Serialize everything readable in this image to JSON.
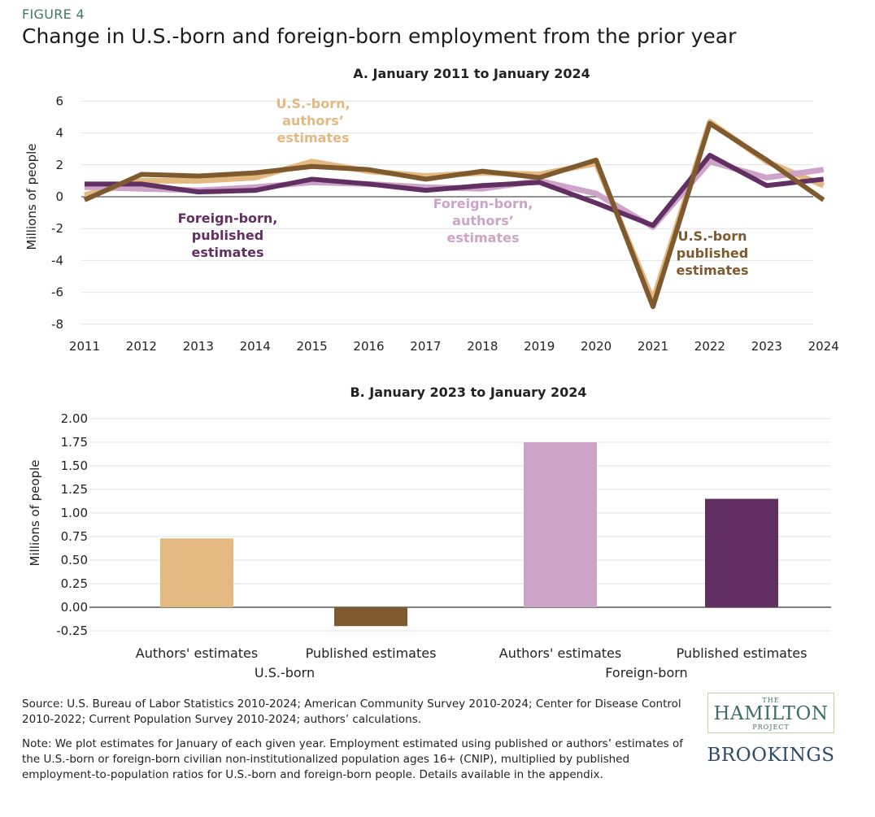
{
  "figure_label": "FIGURE 4",
  "title": "Change in U.S.-born and foreign-born employment from the prior year",
  "chart_data": [
    {
      "type": "line",
      "title": "A. January 2011 to January 2024",
      "ylabel": "Millions of people",
      "xlabel": "",
      "x": [
        "2011",
        "2012",
        "2013",
        "2014",
        "2015",
        "2016",
        "2017",
        "2018",
        "2019",
        "2020",
        "2021",
        "2022",
        "2023",
        "2024"
      ],
      "ylim": [
        -8,
        6
      ],
      "yticks": [
        "6",
        "4",
        "2",
        "0",
        "-2",
        "-4",
        "-6",
        "-8"
      ],
      "grid": true,
      "series": [
        {
          "name": "U.S.-born, authors' estimates",
          "color": "#e4b881",
          "values": [
            0.1,
            1.0,
            1.0,
            1.2,
            2.2,
            1.6,
            1.3,
            1.5,
            1.4,
            2.1,
            -6.5,
            4.7,
            2.2,
            0.7
          ]
        },
        {
          "name": "Foreign-born, authors' estimates",
          "color": "#cda3c8",
          "values": [
            0.6,
            0.5,
            0.4,
            0.6,
            0.9,
            0.8,
            0.6,
            0.5,
            1.0,
            0.2,
            -1.9,
            2.2,
            1.2,
            1.7
          ]
        },
        {
          "name": "Foreign-born, published estimates",
          "color": "#622f63",
          "values": [
            0.8,
            0.8,
            0.3,
            0.4,
            1.1,
            0.8,
            0.4,
            0.7,
            0.9,
            -0.4,
            -1.8,
            2.6,
            0.7,
            1.1
          ]
        },
        {
          "name": "U.S.-born published estimates",
          "color": "#7f5a2e",
          "values": [
            -0.2,
            1.4,
            1.3,
            1.5,
            1.9,
            1.7,
            1.1,
            1.6,
            1.2,
            2.3,
            -6.9,
            4.6,
            2.3,
            -0.2
          ]
        }
      ],
      "annotations": {
        "us_authors": [
          "U.S.-born,",
          "authors’",
          "estimates"
        ],
        "fb_published": [
          "Foreign-born,",
          "published",
          "estimates"
        ],
        "fb_authors": [
          "Foreign-born,",
          "authors’",
          "estimates"
        ],
        "us_published": [
          "U.S.-born",
          "published",
          "estimates"
        ]
      }
    },
    {
      "type": "bar",
      "title": "B. January 2023 to January 2024",
      "ylabel": "Millions of people",
      "ylim": [
        -0.25,
        2.0
      ],
      "yticks": [
        "2.00",
        "1.75",
        "1.50",
        "1.25",
        "1.00",
        "0.75",
        "0.50",
        "0.25",
        "0.00",
        "-0.25"
      ],
      "grid": true,
      "categories": [
        "Authors' estimates",
        "Published estimates",
        "Authors' estimates",
        "Published estimates"
      ],
      "groups": [
        "U.S.-born",
        "Foreign-born"
      ],
      "values": [
        0.73,
        -0.2,
        1.75,
        1.15
      ],
      "colors": [
        "#e4b881",
        "#7f5a2e",
        "#cda3c8",
        "#622f63"
      ]
    }
  ],
  "source": "Source: U.S. Bureau of Labor Statistics 2010-2024; American Community Survey 2010-2024; Center for Disease Control 2010-2022; Current Population Survey 2010-2024; authors’ calculations.",
  "note": "Note: We plot estimates for January of each given year. Employment estimated using published or authors’ estimates of the U.S.-born or foreign-born civilian non-institutionalized population ages 16+ (CNIP), multiplied by published employment-to-population ratios for U.S.-born and foreign-born people. Details available in the appendix.",
  "logo": {
    "the": "THE",
    "hamilton": "HAMILTON",
    "project": "PROJECT",
    "brookings": "BROOKINGS"
  }
}
